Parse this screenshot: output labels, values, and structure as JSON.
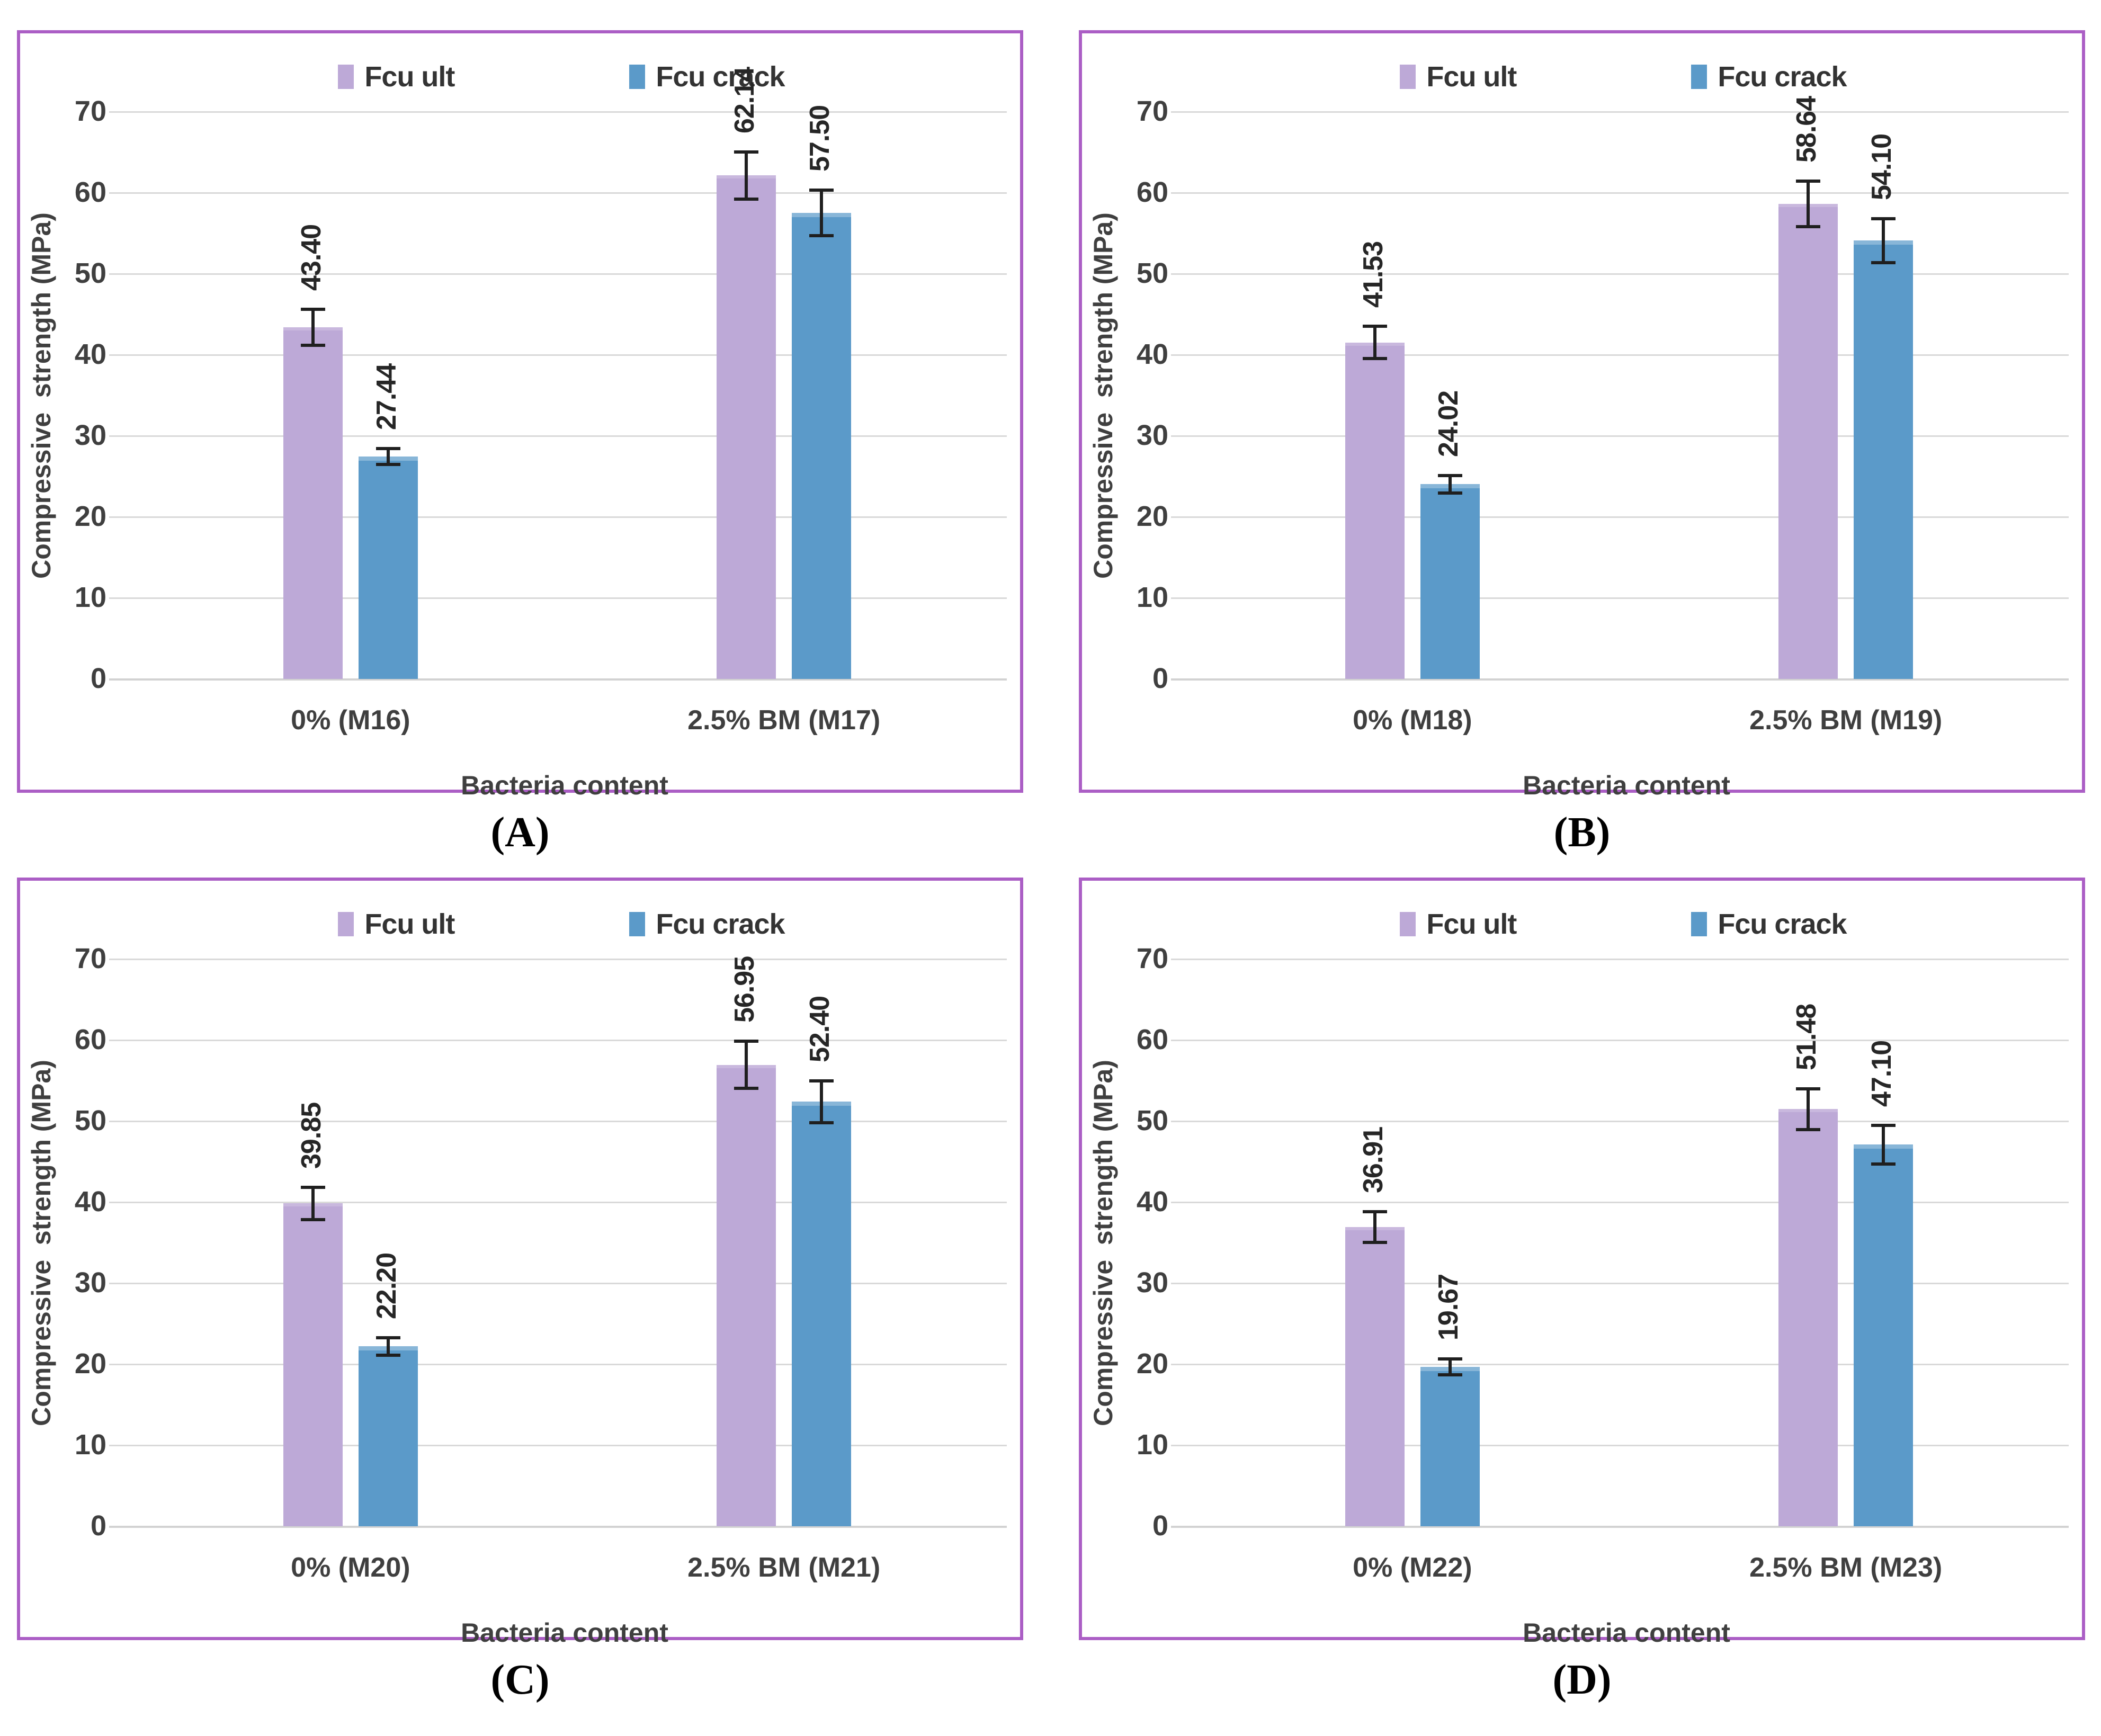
{
  "style": {
    "panel_border_color": "#ab5ec5",
    "grid_color": "#d9d9d9",
    "axis_line_color": "#d2d2d2",
    "axis_text_color": "#3f3f3f",
    "value_label_color": "#262626",
    "error_bar_color": "#1f1f1f",
    "series_colors": {
      "Fcu ult": "#bda9d7",
      "Fcu crack": "#5b9ac9"
    }
  },
  "chart_data": [
    {
      "type": "bar",
      "caption": "(A)",
      "categories": [
        "0% (M16)",
        "2.5% BM (M17)"
      ],
      "series": [
        {
          "name": "Fcu ult",
          "color": "#bda9d7",
          "values": [
            43.4,
            62.14
          ],
          "errors": [
            2.2,
            2.9
          ]
        },
        {
          "name": "Fcu crack",
          "color": "#5b9ac9",
          "values": [
            27.44,
            57.5
          ],
          "errors": [
            1.0,
            2.8
          ]
        }
      ],
      "value_labels": [
        [
          "43.40",
          "62.14"
        ],
        [
          "27.44",
          "57.50"
        ]
      ],
      "xlabel": "Bacteria content",
      "ylabel": "Compressive  strength (MPa)",
      "ylim": [
        0,
        75
      ],
      "yticks": [
        0,
        10,
        20,
        30,
        40,
        50,
        60,
        70
      ],
      "legend_position": "top",
      "grid": true
    },
    {
      "type": "bar",
      "caption": "(B)",
      "categories": [
        "0% (M18)",
        "2.5% BM (M19)"
      ],
      "series": [
        {
          "name": "Fcu ult",
          "color": "#bda9d7",
          "values": [
            41.53,
            58.64
          ],
          "errors": [
            2.0,
            2.8
          ]
        },
        {
          "name": "Fcu crack",
          "color": "#5b9ac9",
          "values": [
            24.02,
            54.1
          ],
          "errors": [
            1.1,
            2.7
          ]
        }
      ],
      "value_labels": [
        [
          "41.53",
          "58.64"
        ],
        [
          "24.02",
          "54.10"
        ]
      ],
      "xlabel": "Bacteria content",
      "ylabel": "Compressive  strength (MPa)",
      "ylim": [
        0,
        75
      ],
      "yticks": [
        0,
        10,
        20,
        30,
        40,
        50,
        60,
        70
      ],
      "legend_position": "top",
      "grid": true
    },
    {
      "type": "bar",
      "caption": "(C)",
      "categories": [
        "0% (M20)",
        "2.5% BM (M21)"
      ],
      "series": [
        {
          "name": "Fcu ult",
          "color": "#bda9d7",
          "values": [
            39.85,
            56.95
          ],
          "errors": [
            2.0,
            2.9
          ]
        },
        {
          "name": "Fcu crack",
          "color": "#5b9ac9",
          "values": [
            22.2,
            52.4
          ],
          "errors": [
            1.1,
            2.6
          ]
        }
      ],
      "value_labels": [
        [
          "39.85",
          "56.95"
        ],
        [
          "22.20",
          "52.40"
        ]
      ],
      "xlabel": "Bacteria content",
      "ylabel": "Compressive  strength (MPa)",
      "ylim": [
        0,
        75
      ],
      "yticks": [
        0,
        10,
        20,
        30,
        40,
        50,
        60,
        70
      ],
      "legend_position": "top",
      "grid": true
    },
    {
      "type": "bar",
      "caption": "(D)",
      "categories": [
        "0% (M22)",
        "2.5% BM (M23)"
      ],
      "series": [
        {
          "name": "Fcu ult",
          "color": "#bda9d7",
          "values": [
            36.91,
            51.48
          ],
          "errors": [
            1.9,
            2.5
          ]
        },
        {
          "name": "Fcu crack",
          "color": "#5b9ac9",
          "values": [
            19.67,
            47.1
          ],
          "errors": [
            1.0,
            2.4
          ]
        }
      ],
      "value_labels": [
        [
          "36.91",
          "51.48"
        ],
        [
          "19.67",
          "47.10"
        ]
      ],
      "xlabel": "Bacteria content",
      "ylabel": "Compressive  strength (MPa)",
      "ylim": [
        0,
        75
      ],
      "yticks": [
        0,
        10,
        20,
        30,
        40,
        50,
        60,
        70
      ],
      "legend_position": "top",
      "grid": true
    }
  ]
}
